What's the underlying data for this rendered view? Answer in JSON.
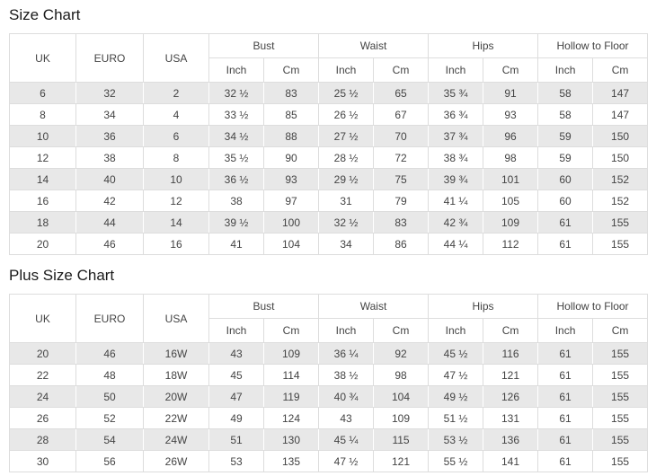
{
  "titles": {
    "size_chart": "Size Chart",
    "plus_size_chart": "Plus Size Chart"
  },
  "header": {
    "uk": "UK",
    "euro": "EURO",
    "usa": "USA",
    "measurements": [
      "Bust",
      "Waist",
      "Hips",
      "Hollow to Floor"
    ],
    "unit_inch": "Inch",
    "unit_cm": "Cm"
  },
  "chart_data": [
    {
      "type": "table",
      "title": "Size Chart",
      "columns": [
        "UK",
        "EURO",
        "USA",
        "Bust Inch",
        "Bust Cm",
        "Waist Inch",
        "Waist Cm",
        "Hips Inch",
        "Hips Cm",
        "Hollow to Floor Inch",
        "Hollow to Floor Cm"
      ],
      "rows": [
        [
          "6",
          "32",
          "2",
          "32 ½",
          "83",
          "25 ½",
          "65",
          "35 ¾",
          "91",
          "58",
          "147"
        ],
        [
          "8",
          "34",
          "4",
          "33 ½",
          "85",
          "26 ½",
          "67",
          "36 ¾",
          "93",
          "58",
          "147"
        ],
        [
          "10",
          "36",
          "6",
          "34 ½",
          "88",
          "27 ½",
          "70",
          "37 ¾",
          "96",
          "59",
          "150"
        ],
        [
          "12",
          "38",
          "8",
          "35 ½",
          "90",
          "28 ½",
          "72",
          "38 ¾",
          "98",
          "59",
          "150"
        ],
        [
          "14",
          "40",
          "10",
          "36 ½",
          "93",
          "29 ½",
          "75",
          "39 ¾",
          "101",
          "60",
          "152"
        ],
        [
          "16",
          "42",
          "12",
          "38",
          "97",
          "31",
          "79",
          "41 ¼",
          "105",
          "60",
          "152"
        ],
        [
          "18",
          "44",
          "14",
          "39 ½",
          "100",
          "32 ½",
          "83",
          "42 ¾",
          "109",
          "61",
          "155"
        ],
        [
          "20",
          "46",
          "16",
          "41",
          "104",
          "34",
          "86",
          "44 ¼",
          "112",
          "61",
          "155"
        ]
      ]
    },
    {
      "type": "table",
      "title": "Plus Size Chart",
      "columns": [
        "UK",
        "EURO",
        "USA",
        "Bust Inch",
        "Bust Cm",
        "Waist Inch",
        "Waist Cm",
        "Hips Inch",
        "Hips Cm",
        "Hollow to Floor Inch",
        "Hollow to Floor Cm"
      ],
      "rows": [
        [
          "20",
          "46",
          "16W",
          "43",
          "109",
          "36 ¼",
          "92",
          "45 ½",
          "116",
          "61",
          "155"
        ],
        [
          "22",
          "48",
          "18W",
          "45",
          "114",
          "38 ½",
          "98",
          "47 ½",
          "121",
          "61",
          "155"
        ],
        [
          "24",
          "50",
          "20W",
          "47",
          "119",
          "40 ¾",
          "104",
          "49 ½",
          "126",
          "61",
          "155"
        ],
        [
          "26",
          "52",
          "22W",
          "49",
          "124",
          "43",
          "109",
          "51 ½",
          "131",
          "61",
          "155"
        ],
        [
          "28",
          "54",
          "24W",
          "51",
          "130",
          "45 ¼",
          "115",
          "53 ½",
          "136",
          "61",
          "155"
        ],
        [
          "30",
          "56",
          "26W",
          "53",
          "135",
          "47 ½",
          "121",
          "55 ½",
          "141",
          "61",
          "155"
        ]
      ]
    }
  ],
  "colors": {
    "row_shade": "#e8e8e8",
    "border": "#dddddd",
    "text": "#444444",
    "title_text": "#1a1a1a"
  }
}
